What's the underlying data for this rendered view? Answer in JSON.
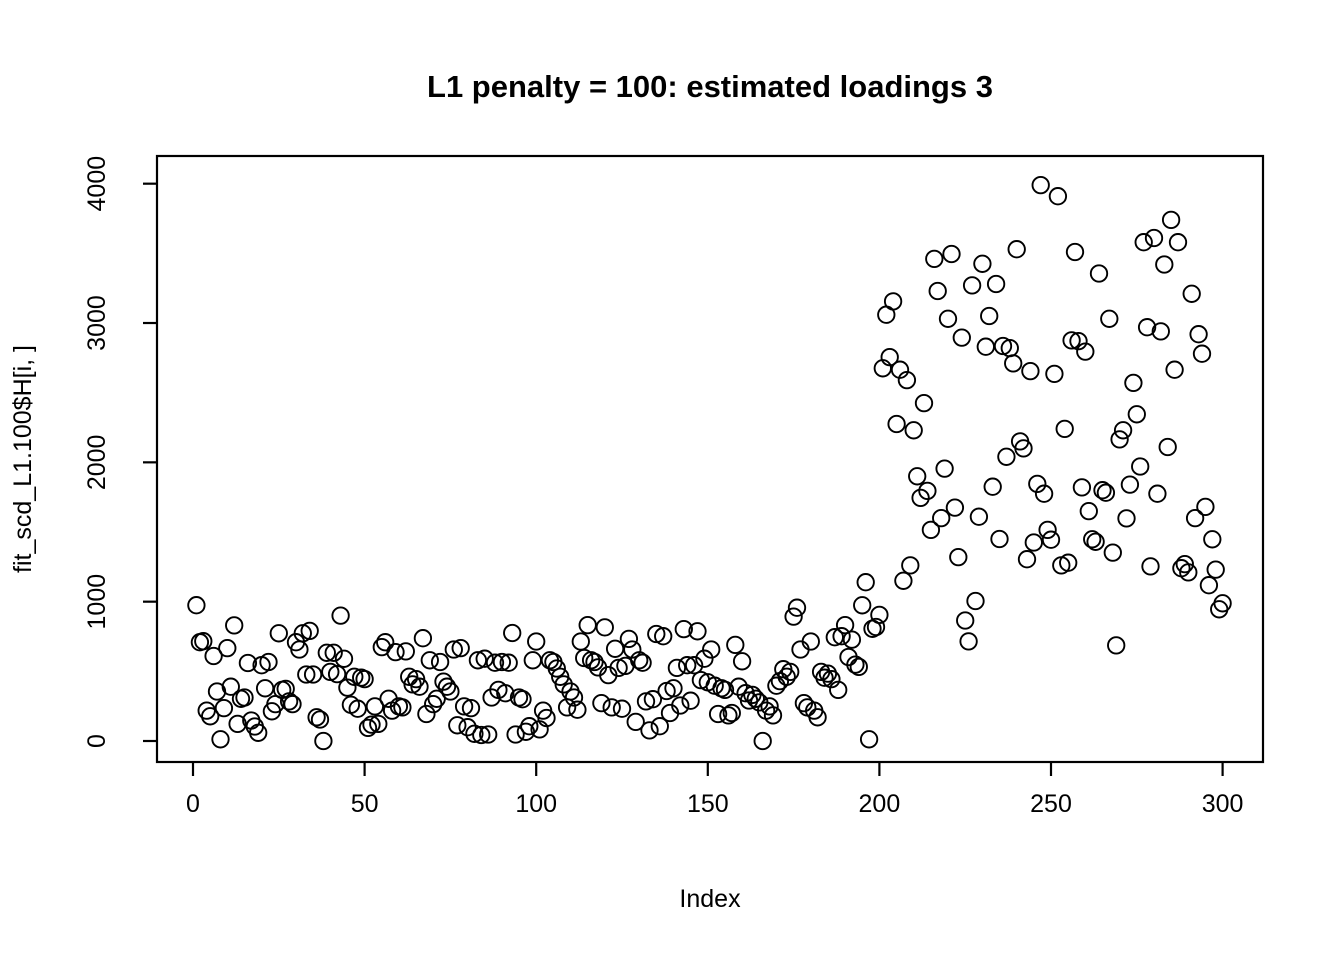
{
  "chart_data": {
    "type": "scatter",
    "title": "L1 penalty = 100: estimated loadings 3",
    "xlabel": "Index",
    "ylabel": "fit_scd_L1.100$H[i, ]",
    "marker": "open-circle",
    "marker_color": "#000000",
    "background_color": "#ffffff",
    "grid": false,
    "legend": false,
    "n_points": 300,
    "x_rule": "index 1..300",
    "xticks": [
      0,
      50,
      100,
      150,
      200,
      250,
      300
    ],
    "yticks": [
      0,
      1000,
      2000,
      3000,
      4000
    ],
    "xlim": [
      -11,
      312
    ],
    "ylim": [
      -151,
      4199
    ],
    "description": "Indices 1-200 scatter uniformly between ~0 and ~1000; indices ~201-300 jump to values between ~700 and ~4000",
    "y": [
      975,
      709,
      716,
      218,
      177,
      610,
      355,
      12,
      236,
      667,
      390,
      830,
      123,
      303,
      312,
      560,
      147,
      104,
      59,
      544,
      378,
      567,
      213,
      265,
      773,
      367,
      374,
      284,
      265,
      709,
      657,
      773,
      477,
      790,
      477,
      170,
      154,
      0,
      633,
      496,
      633,
      480,
      900,
      590,
      383,
      260,
      461,
      232,
      455,
      444,
      94,
      118,
      248,
      123,
      674,
      709,
      303,
      218,
      638,
      248,
      241,
      643,
      461,
      406,
      444,
      390,
      738,
      194,
      579,
      265,
      303,
      567,
      426,
      390,
      355,
      657,
      113,
      667,
      248,
      99,
      236,
      52,
      579,
      43,
      591,
      47,
      312,
      562,
      367,
      567,
      343,
      562,
      775,
      47,
      312,
      300,
      66,
      106,
      579,
      714,
      83,
      218,
      165,
      579,
      567,
      520,
      461,
      406,
      241,
      355,
      312,
      225,
      714,
      596,
      832,
      579,
      567,
      528,
      272,
      815,
      473,
      241,
      662,
      525,
      232,
      539,
      733,
      657,
      137,
      579,
      562,
      284,
      76,
      300,
      768,
      106,
      752,
      359,
      201,
      378,
      525,
      255,
      803,
      544,
      289,
      544,
      787,
      437,
      591,
      421,
      657,
      397,
      194,
      378,
      367,
      184,
      201,
      690,
      390,
      572,
      343,
      291,
      331,
      303,
      277,
      0,
      218,
      248,
      184,
      397,
      430,
      515,
      461,
      496,
      893,
      957,
      657,
      272,
      241,
      714,
      218,
      170,
      496,
      454,
      484,
      444,
      745,
      367,
      752,
      832,
      603,
      728,
      548,
      532,
      974,
      1140,
      12,
      805,
      818,
      905,
      2675,
      3060,
      2755,
      3155,
      2275,
      2665,
      1150,
      2590,
      1260,
      2230,
      1900,
      1745,
      2425,
      1795,
      1515,
      3460,
      3230,
      1600,
      1955,
      3030,
      3495,
      1675,
      1320,
      2895,
      865,
      715,
      3270,
      1005,
      1610,
      3425,
      2830,
      3050,
      1825,
      3280,
      1450,
      2835,
      2040,
      2820,
      2710,
      3530,
      2150,
      2100,
      1305,
      2655,
      1425,
      1845,
      3990,
      1775,
      1515,
      1445,
      2635,
      3910,
      1260,
      2240,
      1280,
      2875,
      3510,
      2870,
      1820,
      2795,
      1650,
      1448,
      1430,
      3355,
      1800,
      1782,
      3030,
      1352,
      686,
      2165,
      2230,
      1598,
      1840,
      2570,
      2345,
      1970,
      3580,
      2970,
      1253,
      3610,
      1775,
      2940,
      3420,
      2110,
      3740,
      2665,
      3580,
      1240,
      1270,
      1210,
      3210,
      1600,
      2920,
      2780,
      1680,
      1118,
      1448,
      1230,
      945,
      988
    ]
  }
}
